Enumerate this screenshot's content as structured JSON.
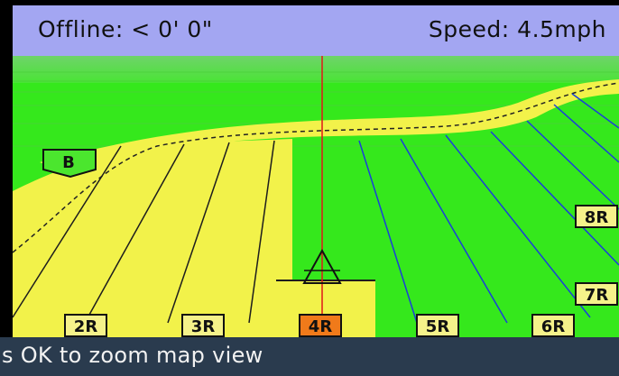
{
  "header": {
    "offline_text": "Offline: < 0' 0\"",
    "speed_text": "Speed: 4.5mph"
  },
  "map": {
    "marker_label": "B",
    "row_labels": {
      "r2": "2R",
      "r3": "3R",
      "r4": "4R",
      "r5": "5R",
      "r6": "6R",
      "r7": "7R",
      "r8": "8R"
    },
    "colors": {
      "field_green": "#35e81c",
      "covered_yellow": "#f2f24a",
      "guidance_line": "#e01818",
      "active_row": "#f07a1a",
      "row_label_bg": "#f5f28a"
    },
    "icons": {
      "vehicle": "triangle-vehicle-icon",
      "waypoint": "waypoint-flag-icon"
    }
  },
  "status": {
    "message": "s OK to zoom map view"
  }
}
